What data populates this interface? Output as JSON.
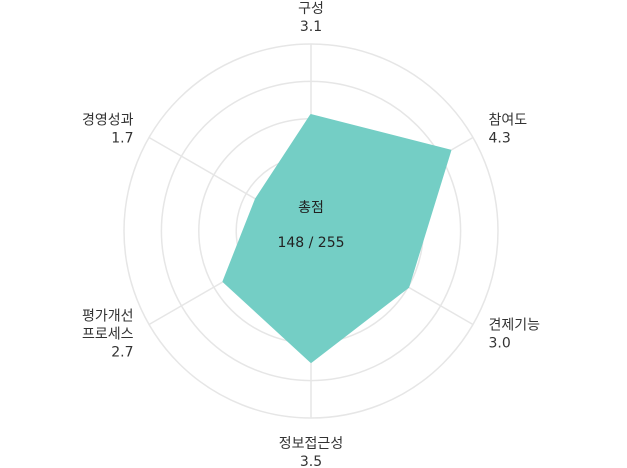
{
  "chart_data": {
    "type": "radar",
    "max": 5,
    "rings": 5,
    "categories": [
      {
        "label": [
          "구성"
        ],
        "value": 3.1,
        "value_label": "3.1"
      },
      {
        "label": [
          "참여도"
        ],
        "value": 4.3,
        "value_label": "4.3"
      },
      {
        "label": [
          "견제기능"
        ],
        "value": 3.0,
        "value_label": "3.0"
      },
      {
        "label": [
          "정보접근성"
        ],
        "value": 3.5,
        "value_label": "3.5"
      },
      {
        "label": [
          "평가개선",
          "프로세스"
        ],
        "value": 2.7,
        "value_label": "2.7"
      },
      {
        "label": [
          "경영성과"
        ],
        "value": 1.7,
        "value_label": "1.7"
      }
    ],
    "center": {
      "title": "총점",
      "score": "148 / 255"
    },
    "fill_color": "#74cec5",
    "grid_color": "#e6e6e6",
    "grid": true,
    "legend": false
  }
}
